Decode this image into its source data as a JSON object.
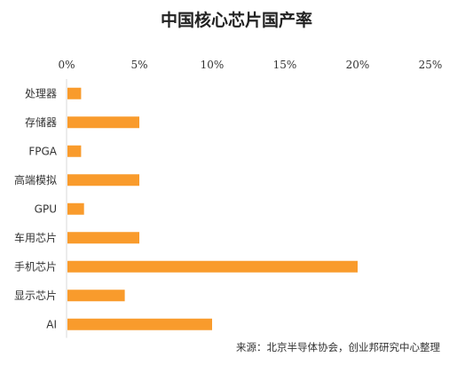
{
  "chart_data": {
    "type": "bar",
    "orientation": "horizontal",
    "title": "中国核心芯片国产率",
    "categories": [
      "处理器",
      "存储器",
      "FPGA",
      "高端模拟",
      "GPU",
      "车用芯片",
      "手机芯片",
      "显示芯片",
      "AI"
    ],
    "values": [
      1,
      5,
      1,
      5,
      1.2,
      5,
      20,
      4,
      10
    ],
    "xlim": [
      0,
      25
    ],
    "x_ticks": [
      0,
      5,
      10,
      15,
      20,
      25
    ],
    "x_tick_labels": [
      "0%",
      "5%",
      "10%",
      "15%",
      "20%",
      "25%"
    ],
    "x_axis_position": "top",
    "xlabel": "",
    "ylabel": "",
    "grid": false,
    "legend": "none",
    "bar_color": "#F99B2C",
    "axis_color": "#D9D9D9",
    "source": "来源：北京半导体协会，创业邦研究中心整理"
  }
}
